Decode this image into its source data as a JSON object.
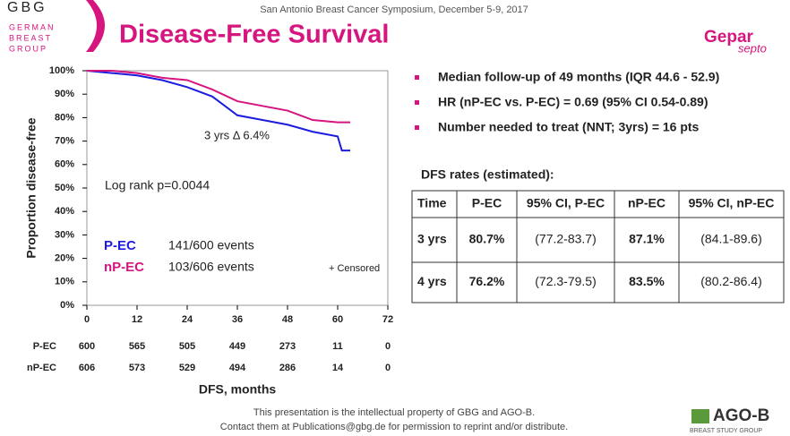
{
  "header": {
    "logo": "GBG",
    "logo_lines": [
      "GERMAN",
      "BREAST",
      "GROUP"
    ],
    "conference": "San Antonio Breast Cancer Symposium, December 5-9, 2017",
    "title": "Disease-Free Survival",
    "brand": "Gepar",
    "brand_sub": "septo"
  },
  "chart_data": {
    "type": "line",
    "y_label": "Proportion disease-free",
    "x_label": "DFS, months",
    "x": [
      0,
      6,
      12,
      18,
      24,
      30,
      36,
      42,
      48,
      54,
      60,
      61,
      63
    ],
    "series": [
      {
        "name": "P-EC",
        "color": "#1c1ce0",
        "values": [
          100,
          99,
          98,
          96,
          93,
          89,
          81,
          79,
          77,
          74,
          72,
          66,
          66
        ]
      },
      {
        "name": "nP-EC",
        "color": "#d6157f",
        "values": [
          100,
          100,
          99,
          97,
          96,
          92,
          87,
          85,
          83,
          79,
          78,
          78,
          78
        ]
      }
    ],
    "legend_notes": [
      "141/600 events",
      "103/606 events"
    ],
    "annotations": [
      "3 yrs Δ 6.4%",
      "Log rank p=0.0044",
      "+ Censored"
    ],
    "xlim": [
      0,
      72
    ],
    "xticks": [
      0,
      12,
      24,
      36,
      48,
      60,
      72
    ],
    "ylim": [
      0,
      100
    ],
    "yticks": [
      {
        "value": 0,
        "label": "0%"
      },
      {
        "value": 10,
        "label": "10%"
      },
      {
        "value": 20,
        "label": "20%"
      },
      {
        "value": 30,
        "label": "30%"
      },
      {
        "value": 40,
        "label": "40%"
      },
      {
        "value": 50,
        "label": "50%"
      },
      {
        "value": 60,
        "label": "60%"
      },
      {
        "value": 70,
        "label": "70%"
      },
      {
        "value": 80,
        "label": "80%"
      },
      {
        "value": 90,
        "label": "90%"
      },
      {
        "value": 100,
        "label": "100%"
      }
    ],
    "risk_table": [
      {
        "label": "P-EC",
        "values": [
          600,
          565,
          505,
          449,
          273,
          11,
          0
        ]
      },
      {
        "label": "nP-EC",
        "values": [
          606,
          573,
          529,
          494,
          286,
          14,
          0
        ]
      }
    ]
  },
  "bullets": [
    "Median follow-up of 49 months (IQR 44.6 - 52.9)",
    "HR (nP-EC vs. P-EC) = 0.69 (95% CI 0.54-0.89)",
    "Number needed to treat  (NNT; 3yrs) = 16 pts"
  ],
  "table": {
    "caption": "DFS rates (estimated):",
    "header": [
      "Time",
      "P-EC",
      "95% CI, P-EC",
      "nP-EC",
      "95% CI, nP-EC"
    ],
    "rows": [
      [
        "3 yrs",
        "80.7%",
        "(77.2-83.7)",
        "87.1%",
        "(84.1-89.6)"
      ],
      [
        "4 yrs",
        "76.2%",
        "(72.3-79.5)",
        "83.5%",
        "(80.2-86.4)"
      ]
    ]
  },
  "footer": {
    "lines": [
      "This presentation is the intellectual property of GBG and AGO-B.",
      "Contact  them at Publications@gbg.de for permission to reprint and/or distribute."
    ],
    "logo": "AGO-B",
    "logo_sub": "BREAST STUDY GROUP"
  }
}
